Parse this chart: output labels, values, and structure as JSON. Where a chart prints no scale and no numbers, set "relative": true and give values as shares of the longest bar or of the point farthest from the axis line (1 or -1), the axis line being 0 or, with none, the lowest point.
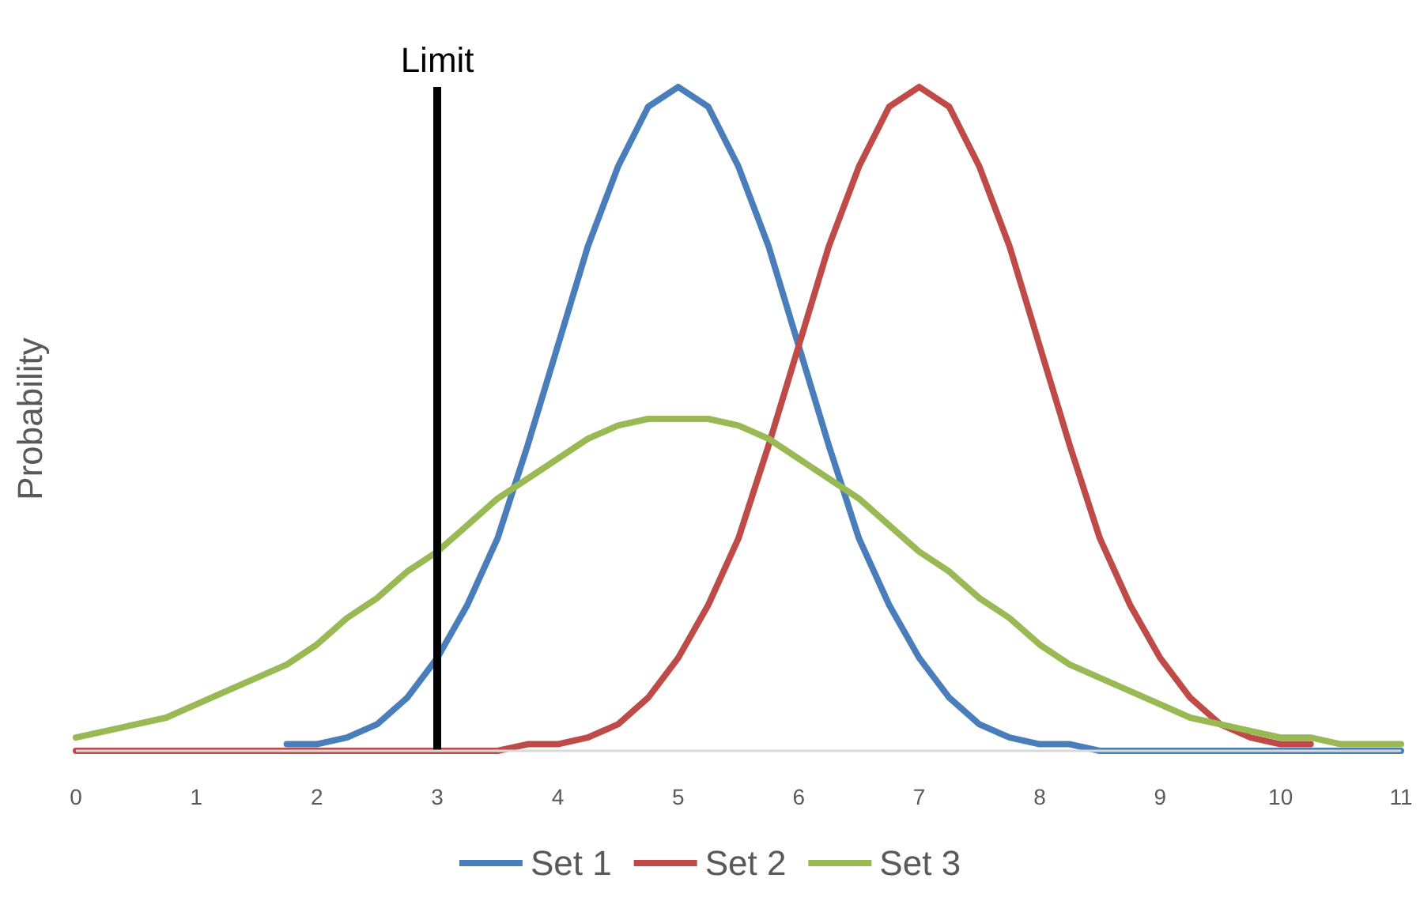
{
  "chart_data": {
    "type": "line",
    "relative": true,
    "ylabel": "Probability",
    "x": [
      0,
      0.25,
      0.5,
      0.75,
      1,
      1.25,
      1.5,
      1.75,
      2,
      2.25,
      2.5,
      2.75,
      3,
      3.25,
      3.5,
      3.75,
      4,
      4.25,
      4.5,
      4.75,
      5,
      5.25,
      5.5,
      5.75,
      6,
      6.25,
      6.5,
      6.75,
      7,
      7.25,
      7.5,
      7.75,
      8,
      8.25,
      8.5,
      8.75,
      9,
      9.25,
      9.5,
      9.75,
      10,
      10.25,
      10.5,
      10.75,
      11
    ],
    "xlim": [
      0,
      11
    ],
    "xticks": [
      0,
      1,
      2,
      3,
      4,
      5,
      6,
      7,
      8,
      9,
      10,
      11
    ],
    "marker": "none",
    "line_style": "solid",
    "grid": false,
    "legend": "bottom",
    "series": [
      {
        "name": "Set 1",
        "color": "#4a7ebb",
        "values": [
          null,
          null,
          null,
          null,
          null,
          null,
          null,
          0.01,
          0.01,
          0.02,
          0.04,
          0.08,
          0.14,
          0.22,
          0.32,
          0.46,
          0.61,
          0.76,
          0.88,
          0.97,
          1,
          0.97,
          0.88,
          0.76,
          0.61,
          0.46,
          0.32,
          0.22,
          0.14,
          0.08,
          0.04,
          0.02,
          0.01,
          0.01,
          0,
          0,
          0,
          0,
          0,
          0,
          0,
          0,
          0,
          0,
          0
        ]
      },
      {
        "name": "Set 2",
        "color": "#be4b48",
        "values": [
          0,
          0,
          0,
          0,
          0,
          0,
          0,
          0,
          0,
          0,
          0,
          0,
          0,
          0,
          0,
          0.01,
          0.01,
          0.02,
          0.04,
          0.08,
          0.14,
          0.22,
          0.32,
          0.46,
          0.61,
          0.76,
          0.88,
          0.97,
          1,
          0.97,
          0.88,
          0.76,
          0.61,
          0.46,
          0.32,
          0.22,
          0.14,
          0.08,
          0.04,
          0.02,
          0.01,
          0.01,
          null,
          null,
          null
        ]
      },
      {
        "name": "Set 3",
        "color": "#98b954",
        "values": [
          0.02,
          0.03,
          0.04,
          0.05,
          0.07,
          0.09,
          0.11,
          0.13,
          0.16,
          0.2,
          0.23,
          0.27,
          0.3,
          0.34,
          0.38,
          0.41,
          0.44,
          0.47,
          0.49,
          0.5,
          0.5,
          0.5,
          0.49,
          0.47,
          0.44,
          0.41,
          0.38,
          0.34,
          0.3,
          0.27,
          0.23,
          0.2,
          0.16,
          0.13,
          0.11,
          0.09,
          0.07,
          0.05,
          0.04,
          0.03,
          0.02,
          0.02,
          0.01,
          0.01,
          0.01
        ]
      }
    ],
    "ref_lines": [
      {
        "axis": "x",
        "value": 3,
        "label": "Limit",
        "color": "#000000",
        "line_style": "solid"
      }
    ]
  }
}
